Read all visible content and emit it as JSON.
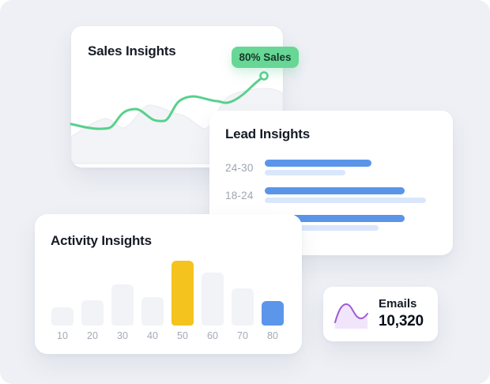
{
  "page": {
    "background": "#EEF0F5"
  },
  "sales_card": {
    "title": "Sales Insights",
    "badge_label": "80% Sales",
    "badge_bg": "#68D796",
    "badge_text_color": "#17382A",
    "line_color": "#58D08C",
    "area_fill": "#F2F4F7",
    "area_stroke": "#E7EAEE",
    "chart": {
      "type": "line",
      "trend": "rising",
      "endpoint_label": "80% Sales"
    }
  },
  "lead_card": {
    "title": "Lead Insights",
    "chart": {
      "type": "bar-horizontal"
    },
    "bar_color": "#5A95E9",
    "bar_light_color": "#DAE7FB",
    "label_color": "#9EA5B0",
    "rows": [
      {
        "label": "24-30",
        "primary": 135,
        "secondary": 102
      },
      {
        "label": "18-24",
        "primary": 177,
        "secondary": 204
      },
      {
        "label": "",
        "primary": 177,
        "secondary": 144
      }
    ]
  },
  "activity_card": {
    "title": "Activity Insights",
    "chart": {
      "type": "bar"
    },
    "categories": [
      "10",
      "20",
      "30",
      "40",
      "50",
      "60",
      "70",
      "80"
    ],
    "values": [
      23,
      32,
      52,
      36,
      82,
      67,
      47,
      31
    ],
    "bar_colors": [
      "#F1F3F6",
      "#F1F3F6",
      "#F1F3F6",
      "#F1F3F6",
      "#F5C31D",
      "#F1F3F6",
      "#F1F3F6",
      "#5B96EB"
    ],
    "label_color": "#A3AAB5"
  },
  "emails_card": {
    "label": "Emails",
    "value": "10,320",
    "line_color": "#9C5BD4",
    "area_fill": "#F1E5FB",
    "chart": {
      "type": "area"
    }
  }
}
